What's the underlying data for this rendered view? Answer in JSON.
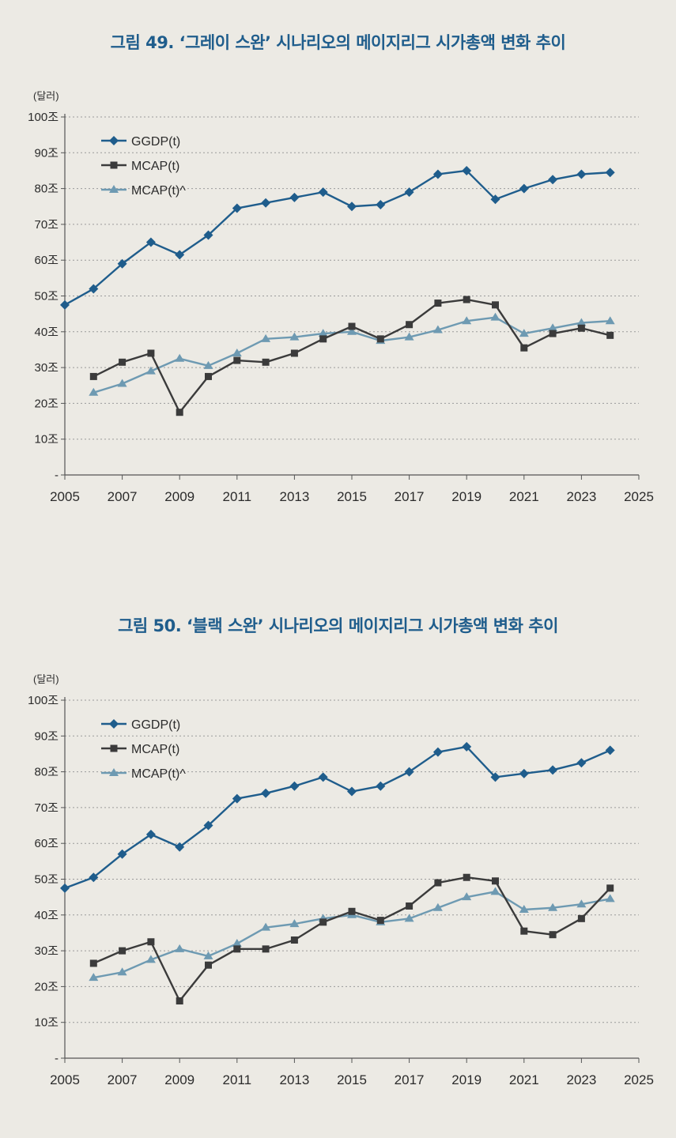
{
  "chart_data": [
    {
      "type": "line",
      "title": "그림 49. ‘그레이 스완’ 시나리오의 메이지리그 시가총액 변화 추이",
      "unit_label": "(달러)",
      "y_tick_labels": [
        "-",
        "10조",
        "20조",
        "30조",
        "40조",
        "50조",
        "60조",
        "70조",
        "80조",
        "90조",
        "100조"
      ],
      "x_tick_labels": [
        "2005",
        "2007",
        "2009",
        "2011",
        "2013",
        "2015",
        "2017",
        "2019",
        "2021",
        "2023",
        "2025"
      ],
      "xlim": [
        2005,
        2025
      ],
      "ylim": [
        0,
        100
      ],
      "grid": true,
      "legend_position": "top-left",
      "series": [
        {
          "name": "GGDP(t)",
          "color": "#1f5d8c",
          "marker": "diamond",
          "x": [
            2005,
            2006,
            2007,
            2008,
            2009,
            2010,
            2011,
            2012,
            2013,
            2014,
            2015,
            2016,
            2017,
            2018,
            2019,
            2020,
            2021,
            2022,
            2023,
            2024
          ],
          "values": [
            47.5,
            52,
            59,
            65,
            61.5,
            67,
            74.5,
            76,
            77.5,
            79,
            75,
            75.5,
            79,
            84,
            85,
            77,
            80,
            82.5,
            84,
            84.5
          ]
        },
        {
          "name": "MCAP(t)",
          "color": "#3b3b3b",
          "marker": "square",
          "x": [
            2006,
            2007,
            2008,
            2009,
            2010,
            2011,
            2012,
            2013,
            2014,
            2015,
            2016,
            2017,
            2018,
            2019,
            2020,
            2021,
            2022,
            2023,
            2024
          ],
          "values": [
            27.5,
            31.5,
            34,
            17.5,
            27.5,
            32,
            31.5,
            34,
            38,
            41.5,
            38,
            42,
            48,
            49,
            47.5,
            35.5,
            39.5,
            41,
            39
          ]
        },
        {
          "name": "MCAP(t)^",
          "color": "#6e9ab2",
          "marker": "triangle",
          "x": [
            2006,
            2007,
            2008,
            2009,
            2010,
            2011,
            2012,
            2013,
            2014,
            2015,
            2016,
            2017,
            2018,
            2019,
            2020,
            2021,
            2022,
            2023,
            2024
          ],
          "values": [
            23,
            25.5,
            29,
            32.5,
            30.5,
            34,
            38,
            38.5,
            39.5,
            40,
            37.5,
            38.5,
            40.5,
            43,
            44,
            39.5,
            41,
            42.5,
            43
          ]
        }
      ]
    },
    {
      "type": "line",
      "title": "그림 50. ‘블랙 스완’ 시나리오의 메이지리그 시가총액 변화 추이",
      "unit_label": "(달러)",
      "y_tick_labels": [
        "-",
        "10조",
        "20조",
        "30조",
        "40조",
        "50조",
        "60조",
        "70조",
        "80조",
        "90조",
        "100조"
      ],
      "x_tick_labels": [
        "2005",
        "2007",
        "2009",
        "2011",
        "2013",
        "2015",
        "2017",
        "2019",
        "2021",
        "2023",
        "2025"
      ],
      "xlim": [
        2005,
        2025
      ],
      "ylim": [
        0,
        100
      ],
      "grid": true,
      "legend_position": "top-left",
      "series": [
        {
          "name": "GGDP(t)",
          "color": "#1f5d8c",
          "marker": "diamond",
          "x": [
            2005,
            2006,
            2007,
            2008,
            2009,
            2010,
            2011,
            2012,
            2013,
            2014,
            2015,
            2016,
            2017,
            2018,
            2019,
            2020,
            2021,
            2022,
            2023,
            2024
          ],
          "values": [
            47.5,
            50.5,
            57,
            62.5,
            59,
            65,
            72.5,
            74,
            76,
            78.5,
            74.5,
            76,
            80,
            85.5,
            87,
            78.5,
            79.5,
            80.5,
            82.5,
            86
          ]
        },
        {
          "name": "MCAP(t)",
          "color": "#3b3b3b",
          "marker": "square",
          "x": [
            2006,
            2007,
            2008,
            2009,
            2010,
            2011,
            2012,
            2013,
            2014,
            2015,
            2016,
            2017,
            2018,
            2019,
            2020,
            2021,
            2022,
            2023,
            2024
          ],
          "values": [
            26.5,
            30,
            32.5,
            16,
            26,
            30.5,
            30.5,
            33,
            38,
            41,
            38.5,
            42.5,
            49,
            50.5,
            49.5,
            35.5,
            34.5,
            39,
            47.5
          ]
        },
        {
          "name": "MCAP(t)^",
          "color": "#6e9ab2",
          "marker": "triangle",
          "x": [
            2006,
            2007,
            2008,
            2009,
            2010,
            2011,
            2012,
            2013,
            2014,
            2015,
            2016,
            2017,
            2018,
            2019,
            2020,
            2021,
            2022,
            2023,
            2024
          ],
          "values": [
            22.5,
            24,
            27.5,
            30.5,
            28.5,
            32,
            36.5,
            37.5,
            39,
            40,
            38,
            39,
            42,
            45,
            46.5,
            41.5,
            42,
            43,
            44.5
          ]
        }
      ]
    }
  ]
}
